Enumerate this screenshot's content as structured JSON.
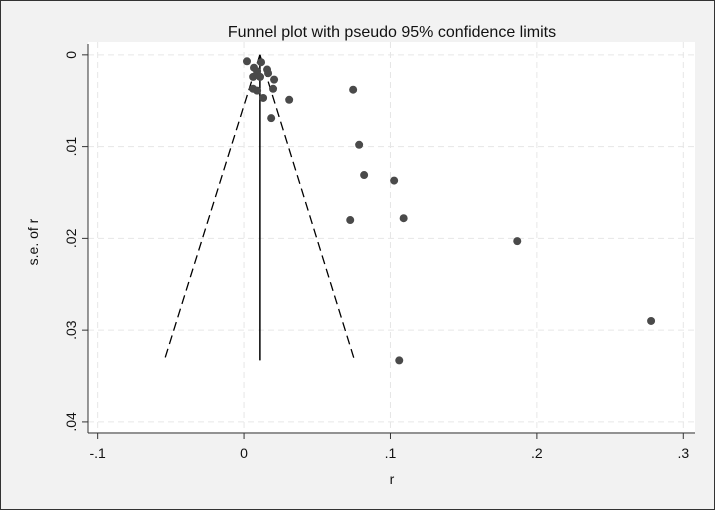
{
  "chart_data": {
    "type": "scatter",
    "title": "Funnel plot with pseudo 95% confidence limits",
    "xlabel": "r",
    "ylabel": "s.e. of r",
    "xlim": [
      -0.1066,
      0.308
    ],
    "ylim": [
      -0.0014,
      0.0411
    ],
    "y_reversed": true,
    "grid": true,
    "xticks": [
      {
        "v": -0.1,
        "label": "-.1"
      },
      {
        "v": 0,
        "label": "0"
      },
      {
        "v": 0.1,
        "label": ".1"
      },
      {
        "v": 0.2,
        "label": ".2"
      },
      {
        "v": 0.3,
        "label": ".3"
      }
    ],
    "yticks": [
      {
        "v": 0,
        "label": "0"
      },
      {
        "v": 0.01,
        "label": ".01"
      },
      {
        "v": 0.02,
        "label": ".02"
      },
      {
        "v": 0.03,
        "label": ".03"
      },
      {
        "v": 0.04,
        "label": ".04"
      }
    ],
    "pooled_estimate": 0.0108,
    "funnel": {
      "se_max": 0.0333,
      "lower_at_se_max": -0.0545,
      "upper_at_se_max": 0.0755
    },
    "points": [
      {
        "r": 0.002,
        "se": 0.0007
      },
      {
        "r": 0.0116,
        "se": 0.0008
      },
      {
        "r": 0.0068,
        "se": 0.0014
      },
      {
        "r": 0.0089,
        "se": 0.0018
      },
      {
        "r": 0.0157,
        "se": 0.0016
      },
      {
        "r": 0.0164,
        "se": 0.002
      },
      {
        "r": 0.0205,
        "se": 0.0027
      },
      {
        "r": 0.0062,
        "se": 0.0024
      },
      {
        "r": 0.0109,
        "se": 0.0024
      },
      {
        "r": 0.0062,
        "se": 0.0037
      },
      {
        "r": 0.0089,
        "se": 0.0039
      },
      {
        "r": 0.0198,
        "se": 0.0037
      },
      {
        "r": 0.013,
        "se": 0.0047
      },
      {
        "r": 0.0308,
        "se": 0.0049
      },
      {
        "r": 0.0185,
        "se": 0.0069
      },
      {
        "r": 0.0745,
        "se": 0.0038
      },
      {
        "r": 0.0786,
        "se": 0.0098
      },
      {
        "r": 0.082,
        "se": 0.0131
      },
      {
        "r": 0.1025,
        "se": 0.0137
      },
      {
        "r": 0.0725,
        "se": 0.018
      },
      {
        "r": 0.109,
        "se": 0.0178
      },
      {
        "r": 0.1866,
        "se": 0.0203
      },
      {
        "r": 0.278,
        "se": 0.029
      },
      {
        "r": 0.106,
        "se": 0.0333
      }
    ],
    "colors": {
      "marker": "#4a4a4a",
      "line": "#000000",
      "grid": "#e6e6e6",
      "background": "#f2f2f2",
      "plot_area": "#ffffff"
    }
  }
}
